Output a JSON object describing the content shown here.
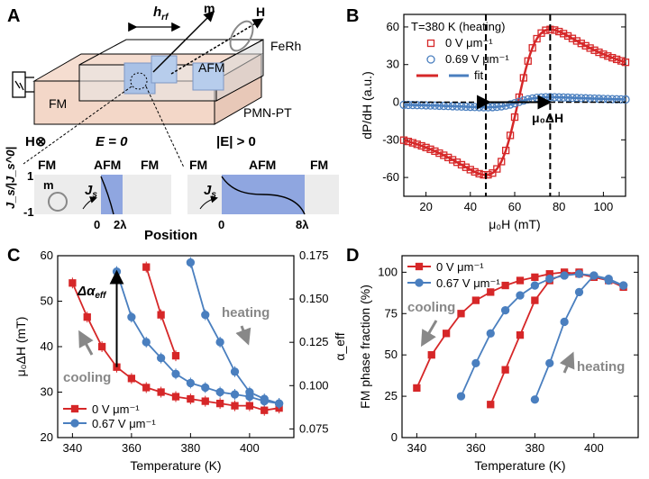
{
  "panels": {
    "a": {
      "label": "A",
      "h_rf": "h",
      "h_rf_sub": "rf",
      "m": "m",
      "H": "H",
      "ferh": "FeRh",
      "pmnpt": "PMN-PT",
      "fm": "FM",
      "afm": "AFM",
      "h_otimes": "H⊗",
      "e_zero": "E = 0",
      "e_pos": "|E| > 0",
      "ylabel": "J_s/|J_s^0|",
      "y_top": "1",
      "y_bot": "-1",
      "sub1": {
        "fm_l": "FM",
        "afm": "AFM",
        "fm_r": "FM",
        "m": "m",
        "js": "J",
        "js_sub": "s",
        "x0": "0",
        "x1": "2λ"
      },
      "sub2": {
        "fm_l": "FM",
        "afm": "AFM",
        "fm_r": "FM",
        "js": "J",
        "js_sub": "s",
        "x0": "0",
        "x1": "8λ"
      },
      "position": "Position"
    },
    "b": {
      "label": "B",
      "title": "T=380 K (heating)",
      "mu0dh": "μ₀ΔH"
    },
    "c": {
      "label": "C",
      "dalpha": "Δα",
      "dalpha_sub": "eff",
      "heating": "heating",
      "cooling": "cooling"
    },
    "d": {
      "label": "D",
      "cooling": "cooling",
      "heating": "heating"
    }
  },
  "chart_data": [
    {
      "panel": "B",
      "type": "line",
      "xlabel": "μ₀H (mT)",
      "ylabel": "dP/dH (a.u.)",
      "xlim": [
        10,
        110
      ],
      "ylim": [
        -75,
        70
      ],
      "xticks": [
        20,
        40,
        60,
        80,
        100
      ],
      "yticks": [
        -60,
        -30,
        0,
        30,
        60
      ],
      "legend": [
        "0 V μm⁻¹",
        "0.69 V μm⁻¹",
        "fit"
      ],
      "legend_placement": "top-left",
      "colors": {
        "red": "#d62728",
        "blue": "#4a7fbf"
      },
      "series": [
        {
          "name": "0 V μm⁻¹",
          "resonance_field": 61.5,
          "half_span": 14.5,
          "peak": 58,
          "marker": "open-square",
          "color": "#d62728"
        },
        {
          "name": "0.69 V μm⁻¹",
          "resonance_field": 61.5,
          "half_span": 14.5,
          "peak": 4,
          "marker": "open-circle",
          "color": "#4a7fbf"
        }
      ],
      "annotations": {
        "dashed_x": [
          47,
          76
        ],
        "arrow": "μ₀ΔH"
      }
    },
    {
      "panel": "C",
      "type": "line",
      "xlabel": "Temperature (K)",
      "ylabel": "μ₀ΔH (mT)",
      "ylabel_right": "α_eff",
      "xlim": [
        335,
        415
      ],
      "ylim": [
        20,
        60
      ],
      "ylim_right": [
        0.07,
        0.175
      ],
      "xticks": [
        340,
        360,
        380,
        400
      ],
      "yticks": [
        20,
        30,
        40,
        50,
        60
      ],
      "yticks_right": [
        0.075,
        0.1,
        0.125,
        0.15,
        0.175
      ],
      "legend": [
        "0 V μm⁻¹",
        "0.67 V μm⁻¹"
      ],
      "legend_placement": "bottom-left",
      "series": [
        {
          "name": "0 V μm⁻¹",
          "color": "#d62728",
          "marker": "square",
          "x": [
            340,
            345,
            350,
            355,
            360,
            365,
            370,
            375,
            380,
            385,
            390,
            395,
            400,
            405,
            410
          ],
          "y": [
            54.0,
            46.5,
            40.0,
            35.5,
            33.0,
            31.0,
            30.0,
            29.0,
            28.5,
            28.0,
            27.5,
            27.0,
            27.0,
            26.0,
            26.5
          ]
        },
        {
          "name": "0 V μm⁻¹ (heating)",
          "color": "#d62728",
          "marker": "square",
          "x": [
            365,
            370,
            375
          ],
          "y": [
            57.5,
            47.0,
            38.0
          ]
        },
        {
          "name": "0.67 V μm⁻¹",
          "color": "#4a7fbf",
          "marker": "circle",
          "x": [
            355,
            360,
            365,
            370,
            375,
            380,
            385,
            390,
            395,
            400,
            405,
            410
          ],
          "y": [
            56.5,
            46.5,
            41.0,
            37.5,
            34.0,
            32.0,
            31.0,
            30.0,
            29.5,
            29.0,
            28.0,
            27.5
          ]
        },
        {
          "name": "0.67 V μm⁻¹ (heating)",
          "color": "#4a7fbf",
          "marker": "circle",
          "x": [
            380,
            385,
            390,
            395,
            400,
            405,
            410
          ],
          "y": [
            58.5,
            47.0,
            41.0,
            34.5,
            30.0,
            28.5,
            27.5
          ]
        }
      ]
    },
    {
      "panel": "D",
      "type": "line",
      "xlabel": "Temperature (K)",
      "ylabel": "FM phase fraction (%)",
      "xlim": [
        335,
        415
      ],
      "ylim": [
        0,
        110
      ],
      "xticks": [
        340,
        360,
        380,
        400
      ],
      "yticks": [
        0,
        25,
        50,
        75,
        100
      ],
      "legend": [
        "0 V μm⁻¹",
        "0.67 V μm⁻¹"
      ],
      "legend_placement": "top-left",
      "series": [
        {
          "name": "0 V μm⁻¹ (cooling)",
          "color": "#d62728",
          "marker": "square",
          "x": [
            340,
            345,
            350,
            355,
            360,
            365,
            370,
            375,
            380,
            385,
            390,
            395,
            400,
            405,
            410
          ],
          "y": [
            30,
            50,
            63,
            75,
            83,
            88,
            92,
            95,
            97,
            99,
            100,
            99,
            97,
            95,
            91
          ]
        },
        {
          "name": "0 V μm⁻¹ (heating)",
          "color": "#d62728",
          "marker": "square",
          "x": [
            365,
            370,
            375,
            380,
            385,
            390,
            395
          ],
          "y": [
            20,
            41,
            62,
            83,
            95,
            99,
            100
          ]
        },
        {
          "name": "0.67 V μm⁻¹ (cooling)",
          "color": "#4a7fbf",
          "marker": "circle",
          "x": [
            355,
            360,
            365,
            370,
            375,
            380,
            385,
            390,
            395,
            400,
            405,
            410
          ],
          "y": [
            25,
            45,
            63,
            77,
            86,
            92,
            96,
            98,
            99,
            98,
            96,
            92
          ]
        },
        {
          "name": "0.67 V μm⁻¹ (heating)",
          "color": "#4a7fbf",
          "marker": "circle",
          "x": [
            380,
            385,
            390,
            395,
            400,
            405,
            410
          ],
          "y": [
            23,
            45,
            70,
            88,
            98,
            95,
            92
          ]
        }
      ]
    }
  ]
}
